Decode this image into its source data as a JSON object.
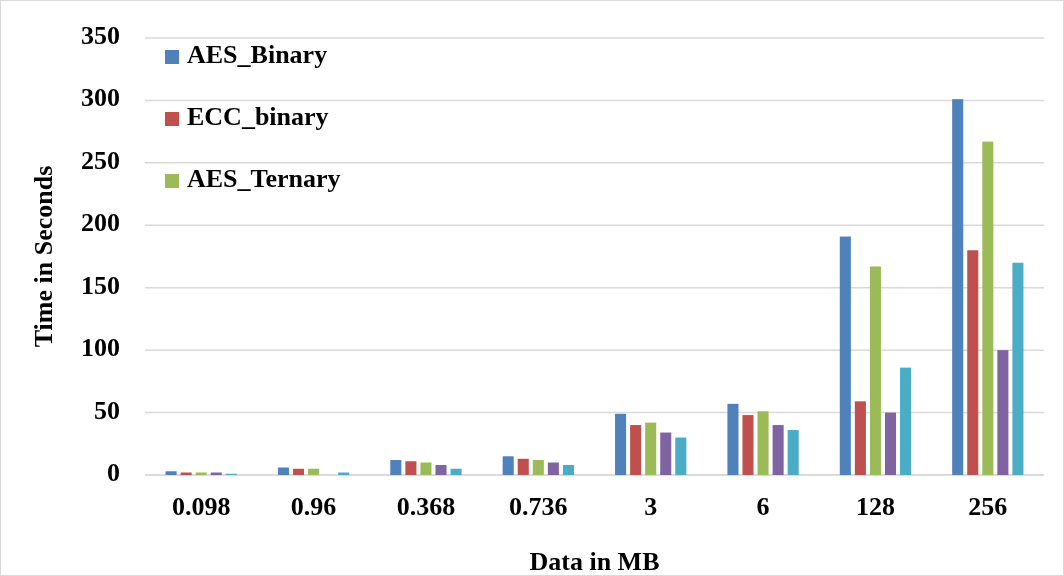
{
  "chart_data": {
    "type": "bar",
    "xlabel": "Data in MB",
    "ylabel": "Time in Seconds",
    "categories": [
      "0.098",
      "0.96",
      "0.368",
      "0.736",
      "3",
      "6",
      "128",
      "256"
    ],
    "series": [
      {
        "name": "AES_Binary",
        "color": "#4f81bd",
        "values": [
          3,
          6,
          12,
          15,
          49,
          57,
          191,
          301
        ]
      },
      {
        "name": "ECC_binary",
        "color": "#c0504d",
        "values": [
          2,
          5,
          11,
          13,
          40,
          48,
          59,
          180
        ]
      },
      {
        "name": "AES_Ternary",
        "color": "#9bbb59",
        "values": [
          2,
          5,
          10,
          12,
          42,
          51,
          167,
          267
        ]
      },
      {
        "color": "#8064a2",
        "values": [
          2,
          null,
          8,
          10,
          34,
          40,
          50,
          100
        ]
      },
      {
        "color": "#4bacc6",
        "values": [
          1,
          2,
          5,
          8,
          30,
          36,
          86,
          170
        ]
      }
    ],
    "ylim": [
      0,
      350
    ],
    "yticks": [
      0,
      50,
      100,
      150,
      200,
      250,
      300,
      350
    ],
    "grid": "y",
    "legend": "top left"
  }
}
